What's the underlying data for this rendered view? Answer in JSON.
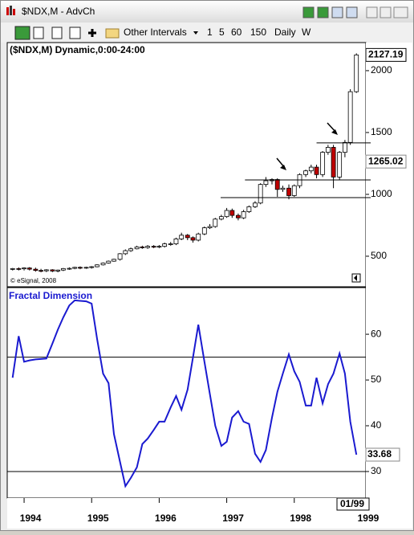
{
  "window": {
    "title": "$NDX,M - AdvCh",
    "toolbar": {
      "menu": "Other Intervals",
      "buttons": [
        "1",
        "5",
        "60",
        "150",
        "Daily",
        "W"
      ]
    }
  },
  "chart_data": [
    {
      "type": "candlestick",
      "title": "($NDX,M) Dynamic,0:00-24:00",
      "copyright": "© eSignal, 2008",
      "x": [
        1993.83,
        1993.92,
        1994.0,
        1994.08,
        1994.17,
        1994.25,
        1994.33,
        1994.42,
        1994.5,
        1994.58,
        1994.67,
        1994.75,
        1994.83,
        1994.92,
        1995.0,
        1995.08,
        1995.17,
        1995.25,
        1995.33,
        1995.42,
        1995.5,
        1995.58,
        1995.67,
        1995.75,
        1995.83,
        1995.92,
        1996.0,
        1996.08,
        1996.17,
        1996.25,
        1996.33,
        1996.42,
        1996.5,
        1996.58,
        1996.67,
        1996.75,
        1996.83,
        1996.92,
        1997.0,
        1997.08,
        1997.17,
        1997.25,
        1997.33,
        1997.42,
        1997.5,
        1997.58,
        1997.67,
        1997.75,
        1997.83,
        1997.92,
        1998.0,
        1998.08,
        1998.17,
        1998.25,
        1998.33,
        1998.42,
        1998.5,
        1998.58,
        1998.67,
        1998.75,
        1998.83,
        1998.92
      ],
      "open": [
        395,
        400,
        398,
        405,
        395,
        385,
        382,
        390,
        380,
        388,
        400,
        402,
        410,
        405,
        410,
        415,
        430,
        445,
        460,
        475,
        520,
        545,
        560,
        575,
        570,
        580,
        575,
        580,
        600,
        600,
        640,
        670,
        650,
        630,
        680,
        730,
        740,
        800,
        820,
        870,
        830,
        810,
        860,
        900,
        930,
        1080,
        1110,
        1120,
        1040,
        1050,
        990,
        1070,
        1160,
        1190,
        1220,
        1160,
        1340,
        1380,
        1140,
        1340,
        1420,
        1830
      ],
      "high": [
        405,
        410,
        410,
        412,
        408,
        398,
        395,
        395,
        392,
        405,
        410,
        415,
        418,
        415,
        420,
        435,
        450,
        465,
        480,
        525,
        555,
        570,
        585,
        585,
        590,
        590,
        590,
        610,
        615,
        650,
        690,
        680,
        660,
        690,
        740,
        760,
        810,
        835,
        890,
        885,
        845,
        875,
        910,
        945,
        1090,
        1140,
        1130,
        1130,
        1070,
        1080,
        1080,
        1170,
        1200,
        1240,
        1240,
        1350,
        1400,
        1400,
        1350,
        1440,
        1850,
        2140
      ],
      "low": [
        385,
        385,
        385,
        385,
        375,
        370,
        372,
        372,
        370,
        380,
        390,
        395,
        395,
        398,
        400,
        410,
        425,
        440,
        455,
        465,
        510,
        535,
        555,
        560,
        560,
        565,
        565,
        570,
        585,
        590,
        630,
        630,
        610,
        620,
        670,
        720,
        730,
        790,
        810,
        810,
        790,
        800,
        850,
        890,
        920,
        1060,
        1080,
        980,
        1020,
        960,
        980,
        1050,
        1140,
        1170,
        1130,
        1140,
        1320,
        1050,
        1120,
        1300,
        1400,
        1820
      ],
      "close": [
        400,
        398,
        405,
        395,
        385,
        382,
        390,
        380,
        388,
        400,
        402,
        410,
        405,
        410,
        415,
        430,
        445,
        460,
        475,
        520,
        545,
        560,
        575,
        570,
        580,
        575,
        580,
        600,
        600,
        640,
        670,
        650,
        630,
        680,
        730,
        740,
        800,
        820,
        870,
        830,
        810,
        860,
        900,
        930,
        1080,
        1110,
        1120,
        1040,
        1050,
        990,
        1070,
        1160,
        1190,
        1220,
        1160,
        1340,
        1380,
        1140,
        1340,
        1420,
        1830,
        2127.19
      ],
      "up_color": "#ffffff",
      "down_color": "#c00000",
      "xlim": [
        1993.75,
        1999.06
      ],
      "ylim": [
        253,
        2227
      ],
      "yticks": [
        500,
        1000,
        1500,
        2000
      ],
      "marker": 1265.02,
      "hlines": [
        {
          "value": 1416,
          "x": 1998.33
        },
        {
          "value": 1117,
          "x": 1997.27
        },
        {
          "value": 974,
          "x": 1996.91
        }
      ]
    },
    {
      "type": "line",
      "title": "Fractal Dimension",
      "color": "#1a1ad0",
      "x": [
        1993.83,
        1993.92,
        1994.0,
        1994.08,
        1994.17,
        1994.25,
        1994.33,
        1994.42,
        1994.5,
        1994.58,
        1994.67,
        1994.75,
        1994.83,
        1994.92,
        1995.0,
        1995.08,
        1995.17,
        1995.25,
        1995.33,
        1995.42,
        1995.5,
        1995.58,
        1995.67,
        1995.75,
        1995.83,
        1995.92,
        1996.0,
        1996.08,
        1996.17,
        1996.25,
        1996.33,
        1996.42,
        1996.5,
        1996.58,
        1996.67,
        1996.75,
        1996.83,
        1996.92,
        1997.0,
        1997.08,
        1997.17,
        1997.25,
        1997.33,
        1997.42,
        1997.5,
        1997.58,
        1997.67,
        1997.75,
        1997.83,
        1997.92,
        1998.0,
        1998.08,
        1998.17,
        1998.25,
        1998.33,
        1998.42,
        1998.5,
        1998.58,
        1998.67,
        1998.75,
        1998.83,
        1998.92
      ],
      "values": [
        50.5,
        59.6,
        54,
        54.3,
        54.5,
        54.6,
        54.7,
        58,
        61,
        63.7,
        66.3,
        67.4,
        67.3,
        67.2,
        66.7,
        59,
        51.4,
        49.3,
        38.2,
        32.1,
        26.8,
        28.6,
        30.9,
        36,
        37.2,
        39.1,
        40.9,
        40.9,
        44,
        46.5,
        43.5,
        47.9,
        54.9,
        62.1,
        54,
        47,
        40,
        35.6,
        36.5,
        41.8,
        43.2,
        40.9,
        40.4,
        33.9,
        32.1,
        34.7,
        41.8,
        47.4,
        51.4,
        55.6,
        51.9,
        49.6,
        44.4,
        44.4,
        50.5,
        44.9,
        49.1,
        51.4,
        55.8,
        51.4,
        40.9,
        33.68
      ],
      "xlim": [
        1993.75,
        1999.06
      ],
      "ylim": [
        24.2,
        70.2
      ],
      "yticks": [
        30,
        40,
        50,
        60
      ],
      "xticks": [
        1994,
        1995,
        1996,
        1997,
        1998,
        1999
      ],
      "hlines": [
        55,
        30
      ],
      "cursor_label": "01/99"
    }
  ]
}
